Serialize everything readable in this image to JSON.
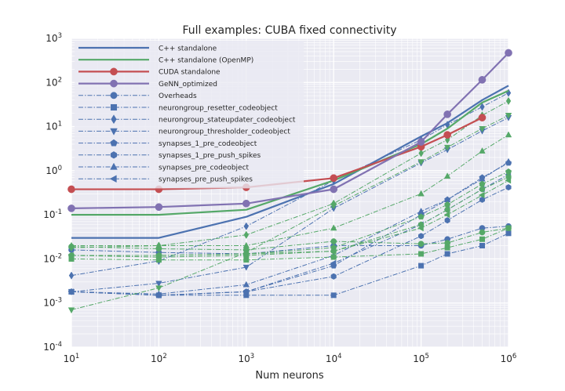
{
  "chart_data": {
    "type": "line",
    "title": "Full examples: CUBA fixed connectivity",
    "xlabel": "Num neurons",
    "ylabel": "",
    "x_scale": "log",
    "y_scale": "log",
    "xlim": [
      10,
      1000000
    ],
    "ylim": [
      0.0001,
      1000
    ],
    "grid": true,
    "legend_position": "top-left",
    "x": [
      10,
      100,
      1000,
      10000,
      100000,
      200000,
      500000,
      1000000
    ],
    "x_ticks": [
      {
        "value": 10,
        "base": "10",
        "exp": "1"
      },
      {
        "value": 100,
        "base": "10",
        "exp": "2"
      },
      {
        "value": 1000,
        "base": "10",
        "exp": "3"
      },
      {
        "value": 10000,
        "base": "10",
        "exp": "4"
      },
      {
        "value": 100000,
        "base": "10",
        "exp": "5"
      },
      {
        "value": 1000000,
        "base": "10",
        "exp": "6"
      }
    ],
    "y_ticks": [
      {
        "value": 0.0001,
        "base": "10",
        "exp": "-4"
      },
      {
        "value": 0.001,
        "base": "10",
        "exp": "-3"
      },
      {
        "value": 0.01,
        "base": "10",
        "exp": "-2"
      },
      {
        "value": 0.1,
        "base": "10",
        "exp": "-1"
      },
      {
        "value": 1,
        "base": "10",
        "exp": "0"
      },
      {
        "value": 10,
        "base": "10",
        "exp": "1"
      },
      {
        "value": 100,
        "base": "10",
        "exp": "2"
      },
      {
        "value": 1000,
        "base": "10",
        "exp": "3"
      }
    ],
    "series": [
      {
        "name": "C++ standalone",
        "color": "#4c72b0",
        "style": "solid",
        "marker": "none",
        "values": [
          0.03,
          0.03,
          0.09,
          0.5,
          6.0,
          12.0,
          40.0,
          85.0
        ]
      },
      {
        "name": "C++ standalone (OpenMP)",
        "color": "#55a868",
        "style": "solid",
        "marker": "none",
        "values": [
          0.1,
          0.1,
          0.13,
          0.6,
          4.0,
          9.0,
          35.0,
          65.0
        ]
      },
      {
        "name": "CUDA standalone",
        "color": "#c44e52",
        "style": "solid",
        "marker": "circle",
        "values": [
          0.38,
          0.38,
          0.42,
          0.68,
          3.5,
          6.5,
          16.0,
          null
        ]
      },
      {
        "name": "GeNN_optimized",
        "color": "#8172b2",
        "style": "solid",
        "marker": "circle",
        "values": [
          0.14,
          0.15,
          0.18,
          0.38,
          4.5,
          19.0,
          115.0,
          470.0
        ]
      },
      {
        "name": "Overheads",
        "color": "#4c72b0",
        "style": "dashdot",
        "marker": "circle",
        "values": [
          0.016,
          0.014,
          0.013,
          0.02,
          0.02,
          0.028,
          0.05,
          0.055
        ]
      },
      {
        "name": "neurongroup_resetter_codeobject",
        "color": "#4c72b0",
        "style": "dashdot",
        "marker": "square",
        "values": [
          0.0018,
          0.0015,
          0.0015,
          0.0015,
          0.007,
          0.013,
          0.02,
          0.038
        ]
      },
      {
        "name": "neurongroup_stateupdater_codeobject",
        "color": "#4c72b0",
        "style": "dashdot",
        "marker": "diamond",
        "values": [
          0.0042,
          0.009,
          0.055,
          0.6,
          5.0,
          11.0,
          28.0,
          58.0
        ]
      },
      {
        "name": "neurongroup_thresholder_codeobject",
        "color": "#4c72b0",
        "style": "dashdot",
        "marker": "triangle_down",
        "values": [
          0.0018,
          0.0028,
          0.0065,
          0.14,
          1.5,
          3.0,
          8.0,
          16.0
        ]
      },
      {
        "name": "synapses_1_pre_codeobject",
        "color": "#4c72b0",
        "style": "dashdot",
        "marker": "pentagon",
        "values": [
          0.0018,
          0.0015,
          0.0018,
          0.007,
          0.1,
          0.22,
          0.7,
          1.5
        ]
      },
      {
        "name": "synapses_1_pre_push_spikes",
        "color": "#4c72b0",
        "style": "dashdot",
        "marker": "hexagon",
        "values": [
          0.0018,
          0.0015,
          0.0018,
          0.004,
          0.033,
          0.075,
          0.22,
          0.42
        ]
      },
      {
        "name": "synapses_pre_codeobject",
        "color": "#4c72b0",
        "style": "dashdot",
        "marker": "triangle_up",
        "values": [
          0.0018,
          0.0016,
          0.0026,
          0.012,
          0.12,
          0.22,
          0.65,
          1.6
        ]
      },
      {
        "name": "synapses_pre_push_spikes",
        "color": "#4c72b0",
        "style": "dashdot",
        "marker": "triangle_left",
        "values": [
          0.0018,
          0.0015,
          0.0018,
          0.008,
          0.06,
          0.13,
          0.38,
          0.82
        ]
      },
      {
        "name": "",
        "color": "#55a868",
        "style": "dashdot",
        "marker": "circle",
        "values": [
          0.019,
          0.017,
          0.016,
          0.025,
          0.022,
          0.023,
          0.04,
          0.05
        ]
      },
      {
        "name": "",
        "color": "#55a868",
        "style": "dashdot",
        "marker": "square",
        "values": [
          0.01,
          0.0095,
          0.0095,
          0.011,
          0.013,
          0.018,
          0.028,
          0.05
        ]
      },
      {
        "name": "",
        "color": "#55a868",
        "style": "dashdot",
        "marker": "diamond",
        "values": [
          0.018,
          0.02,
          0.035,
          0.18,
          2.5,
          5.0,
          18.0,
          38.0
        ]
      },
      {
        "name": "",
        "color": "#55a868",
        "style": "dashdot",
        "marker": "triangle_down",
        "values": [
          0.0007,
          0.0022,
          0.014,
          0.16,
          1.6,
          3.4,
          9.0,
          18.0
        ]
      },
      {
        "name": "",
        "color": "#55a868",
        "style": "dashdot",
        "marker": "pentagon",
        "values": [
          0.012,
          0.012,
          0.013,
          0.018,
          0.09,
          0.17,
          0.5,
          0.95
        ]
      },
      {
        "name": "",
        "color": "#55a868",
        "style": "dashdot",
        "marker": "hexagon",
        "values": [
          0.012,
          0.011,
          0.012,
          0.015,
          0.06,
          0.13,
          0.38,
          0.72
        ]
      },
      {
        "name": "",
        "color": "#55a868",
        "style": "dashdot",
        "marker": "triangle_up",
        "values": [
          0.02,
          0.02,
          0.02,
          0.05,
          0.3,
          0.75,
          2.8,
          6.5
        ]
      },
      {
        "name": "",
        "color": "#55a868",
        "style": "dashdot",
        "marker": "triangle_left",
        "values": [
          0.012,
          0.012,
          0.013,
          0.015,
          0.05,
          0.1,
          0.28,
          0.6
        ]
      }
    ]
  }
}
